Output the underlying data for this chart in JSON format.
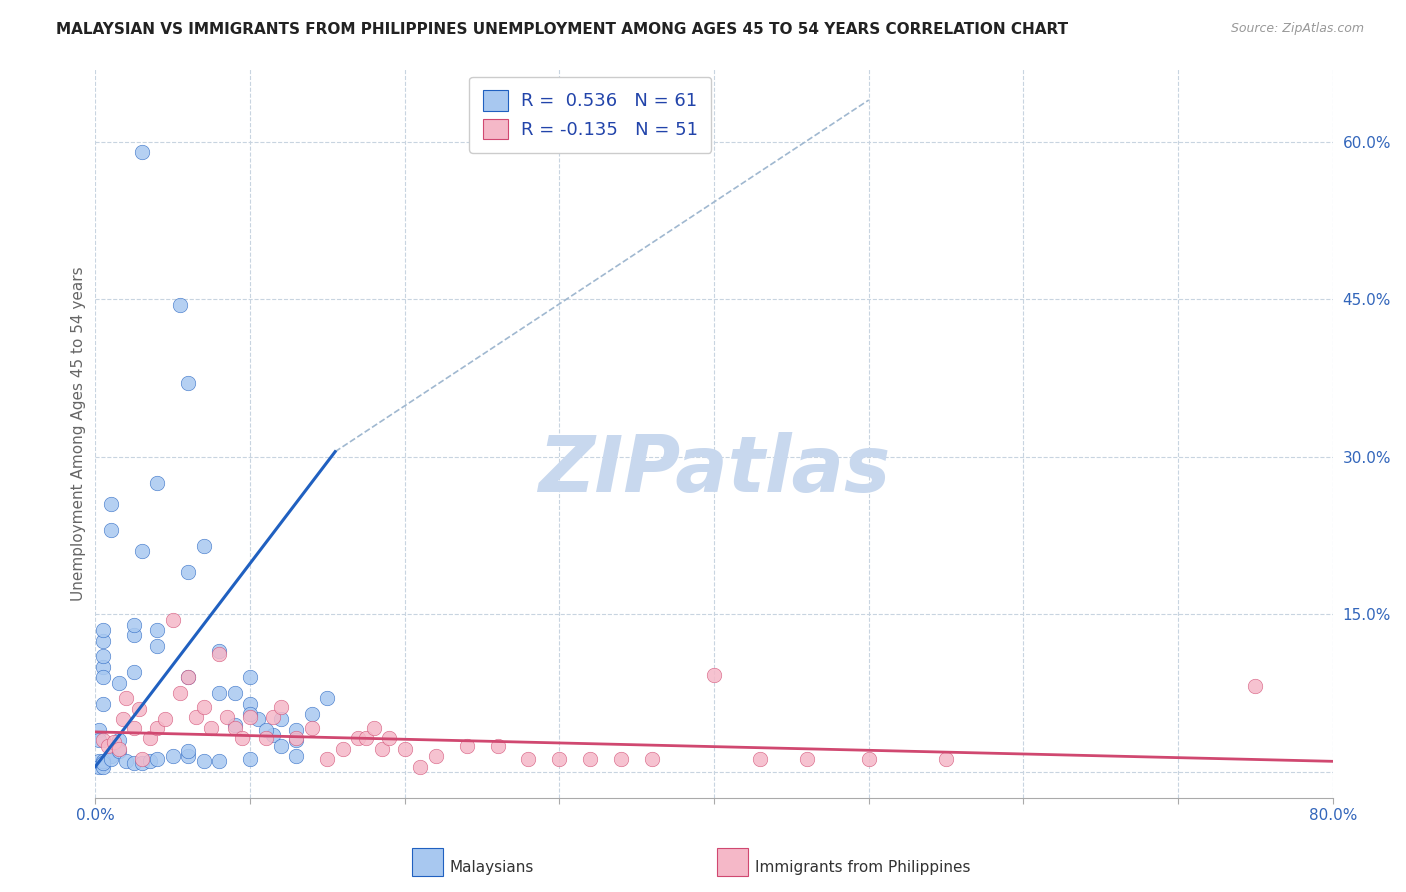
{
  "title": "MALAYSIAN VS IMMIGRANTS FROM PHILIPPINES UNEMPLOYMENT AMONG AGES 45 TO 54 YEARS CORRELATION CHART",
  "source": "Source: ZipAtlas.com",
  "ylabel": "Unemployment Among Ages 45 to 54 years",
  "watermark": "ZIPatlas",
  "legend_r1": "R =  0.536",
  "legend_n1": "N = 61",
  "legend_r2": "R = -0.135",
  "legend_n2": "N = 51",
  "ytick_labels": [
    "",
    "15.0%",
    "30.0%",
    "45.0%",
    "60.0%"
  ],
  "ytick_values": [
    0.0,
    0.15,
    0.3,
    0.45,
    0.6
  ],
  "xmin": 0.0,
  "xmax": 0.8,
  "ymin": -0.025,
  "ymax": 0.67,
  "blue_scatter_x": [
    0.03,
    0.055,
    0.005,
    0.005,
    0.01,
    0.01,
    0.005,
    0.005,
    0.005,
    0.015,
    0.005,
    0.002,
    0.002,
    0.015,
    0.025,
    0.03,
    0.04,
    0.04,
    0.06,
    0.07,
    0.06,
    0.08,
    0.1,
    0.09,
    0.1,
    0.105,
    0.115,
    0.12,
    0.13,
    0.13,
    0.14,
    0.15,
    0.002,
    0.002,
    0.005,
    0.01,
    0.005,
    0.005,
    0.01,
    0.015,
    0.02,
    0.025,
    0.03,
    0.035,
    0.04,
    0.05,
    0.06,
    0.08,
    0.1,
    0.025,
    0.04,
    0.06,
    0.025,
    0.08,
    0.1,
    0.12,
    0.09,
    0.11,
    0.13,
    0.06,
    0.07
  ],
  "blue_scatter_y": [
    0.59,
    0.445,
    0.1,
    0.125,
    0.255,
    0.23,
    0.11,
    0.135,
    0.09,
    0.085,
    0.065,
    0.04,
    0.03,
    0.03,
    0.13,
    0.21,
    0.275,
    0.135,
    0.19,
    0.215,
    0.37,
    0.115,
    0.09,
    0.075,
    0.065,
    0.05,
    0.035,
    0.025,
    0.015,
    0.04,
    0.055,
    0.07,
    0.01,
    0.005,
    0.005,
    0.015,
    0.01,
    0.008,
    0.012,
    0.02,
    0.01,
    0.008,
    0.008,
    0.01,
    0.012,
    0.015,
    0.015,
    0.01,
    0.012,
    0.14,
    0.12,
    0.09,
    0.095,
    0.075,
    0.055,
    0.05,
    0.045,
    0.04,
    0.03,
    0.02,
    0.01
  ],
  "pink_scatter_x": [
    0.005,
    0.008,
    0.012,
    0.015,
    0.018,
    0.02,
    0.025,
    0.028,
    0.03,
    0.035,
    0.04,
    0.045,
    0.05,
    0.055,
    0.06,
    0.065,
    0.07,
    0.075,
    0.08,
    0.085,
    0.09,
    0.095,
    0.1,
    0.11,
    0.115,
    0.12,
    0.13,
    0.14,
    0.15,
    0.16,
    0.17,
    0.175,
    0.18,
    0.185,
    0.19,
    0.2,
    0.21,
    0.22,
    0.24,
    0.26,
    0.28,
    0.3,
    0.32,
    0.34,
    0.36,
    0.4,
    0.43,
    0.46,
    0.5,
    0.55,
    0.75
  ],
  "pink_scatter_y": [
    0.03,
    0.025,
    0.028,
    0.022,
    0.05,
    0.07,
    0.042,
    0.06,
    0.012,
    0.032,
    0.042,
    0.05,
    0.145,
    0.075,
    0.09,
    0.052,
    0.062,
    0.042,
    0.112,
    0.052,
    0.042,
    0.032,
    0.052,
    0.032,
    0.052,
    0.062,
    0.032,
    0.042,
    0.012,
    0.022,
    0.032,
    0.032,
    0.042,
    0.022,
    0.032,
    0.022,
    0.005,
    0.015,
    0.025,
    0.025,
    0.012,
    0.012,
    0.012,
    0.012,
    0.012,
    0.092,
    0.012,
    0.012,
    0.012,
    0.012,
    0.082
  ],
  "blue_line_x": [
    0.0,
    0.155
  ],
  "blue_line_y": [
    0.005,
    0.305
  ],
  "pink_line_x": [
    0.0,
    0.8
  ],
  "pink_line_y": [
    0.038,
    0.01
  ],
  "diag_line_x": [
    0.155,
    0.5
  ],
  "diag_line_y": [
    0.305,
    0.64
  ],
  "blue_color": "#A8C8F0",
  "pink_color": "#F5B8C8",
  "blue_line_color": "#2060C0",
  "pink_line_color": "#D04870",
  "diag_color": "#A0B8D0",
  "title_fontsize": 11,
  "source_fontsize": 9,
  "watermark_color": "#C8D8EE",
  "legend_label1": "Malaysians",
  "legend_label2": "Immigrants from Philippines"
}
